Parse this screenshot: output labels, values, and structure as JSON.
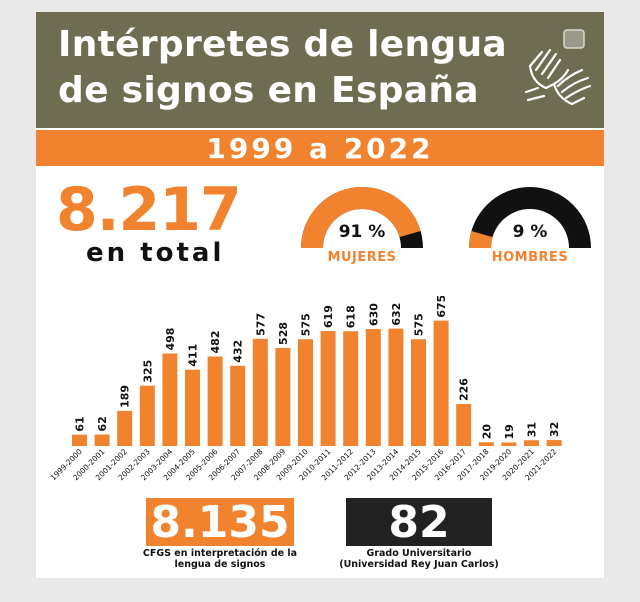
{
  "header": {
    "title_line1": "Intérpretes de lengua",
    "title_line2": "de signos en España",
    "icon": "sign-language-hands-icon"
  },
  "period": "1999 a 2022",
  "total": {
    "value": "8.217",
    "label": "en total"
  },
  "gender": {
    "women": {
      "percent_text": "91 %",
      "label": "MUJERES",
      "value": 91
    },
    "men": {
      "percent_text": "9 %",
      "label": "HOMBRES",
      "value": 9
    }
  },
  "colors": {
    "accent": "#f2832e",
    "header": "#6e6d52",
    "dark": "#222222"
  },
  "chart_data": {
    "type": "bar",
    "categories": [
      "1999-2000",
      "2000-2001",
      "2001-2002",
      "2002-2003",
      "2003-2004",
      "2004-2005",
      "2005-2006",
      "2006-2007",
      "2007-2008",
      "2008-2009",
      "2009-2010",
      "2010-2011",
      "2011-2012",
      "2012-2013",
      "2013-2014",
      "2014-2015",
      "2015-2016",
      "2016-2017",
      "2017-2018",
      "2019-2020",
      "2020-2021",
      "2021-2022"
    ],
    "values": [
      61,
      62,
      189,
      325,
      498,
      411,
      482,
      432,
      577,
      528,
      575,
      619,
      618,
      630,
      632,
      575,
      675,
      226,
      20,
      19,
      31,
      32
    ],
    "ylim": [
      0,
      700
    ],
    "grid": false,
    "legend": "none"
  },
  "stats": {
    "cfgs": {
      "value": "8.135",
      "caption_line1": "CFGS en interpretación de la",
      "caption_line2": "lengua de signos"
    },
    "university": {
      "value": "82",
      "caption_line1": "Grado Universitario",
      "caption_line2": "(Universidad Rey Juan Carlos)"
    }
  }
}
